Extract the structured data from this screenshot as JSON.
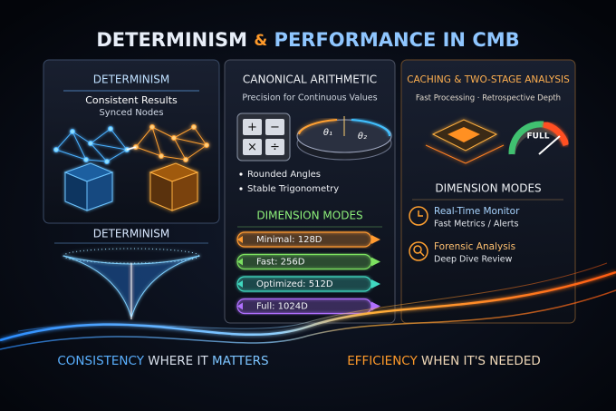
{
  "header": {
    "title_parts": [
      "DETERMINISM",
      "&",
      "PERFORMANCE IN CMB"
    ]
  },
  "left_panel": {
    "heading": "DETERMINISM",
    "lines": [
      "Consistent Results",
      "Synced Nodes"
    ],
    "lower_heading": "DETERMINISM"
  },
  "middle_panel": {
    "heading": "CANONICAL ARITHMETIC",
    "subtitle": "Precision for Continuous Values",
    "calculator_keys": [
      "+",
      "−",
      "×",
      "÷"
    ],
    "angle_labels": [
      "θ₁",
      "θ₂"
    ],
    "bullets": [
      "Rounded Angles",
      "Stable Trigonometry"
    ],
    "modes_heading": "DIMENSION MODES",
    "modes": [
      "Minimal: 128D",
      "Fast: 256D",
      "Optimized: 512D",
      "Full: 1024D"
    ]
  },
  "right_panel": {
    "heading": "CACHING & TWO-STAGE ANALYSIS",
    "subtitle": "Fast Processing · Retrospective Depth",
    "gauge_label": "FULL",
    "modes_heading": "DIMENSION MODES",
    "items": [
      {
        "title": "Real-Time Monitor",
        "detail": "Fast Metrics / Alerts"
      },
      {
        "title": "Forensic Analysis",
        "detail": "Deep Dive Review"
      }
    ]
  },
  "footer": {
    "left_parts": [
      "CONSISTENCY",
      "WHERE IT",
      "MATTERS"
    ],
    "right_parts": [
      "EFFICIENCY",
      "WHEN IT'S NEEDED"
    ]
  }
}
